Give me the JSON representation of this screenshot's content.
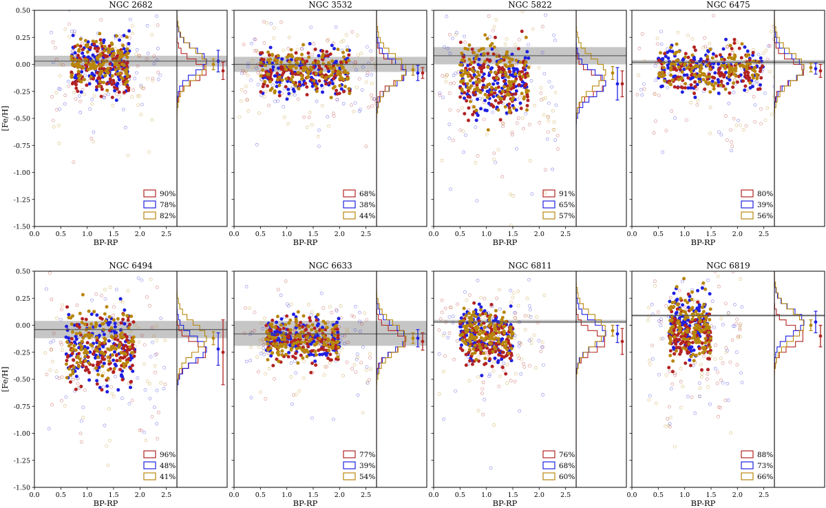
{
  "figure": {
    "ylabel": "[Fe/H]",
    "xlabel": "BP-RP",
    "colors": {
      "red": "#b22222",
      "blue": "#1f1fe0",
      "gold": "#b8860b",
      "band": "#c0c0c0",
      "line": "#555555"
    }
  },
  "chart_data": [
    {
      "type": "scatter",
      "title": "NGC 2682",
      "xlabel": "BP-RP",
      "ylabel": "[Fe/H]",
      "xlim": [
        0.0,
        2.7
      ],
      "ylim": [
        -1.5,
        0.5
      ],
      "xticks": [
        "0.0",
        "0.5",
        "1.0",
        "1.5",
        "2.0",
        "2.5"
      ],
      "yticks": [
        "0.50",
        "0.25",
        "0.00",
        "-0.25",
        "-0.50",
        "-0.75",
        "-1.00",
        "-1.25",
        "-1.50"
      ],
      "reference_feh": 0.03,
      "reference_band": [
        -0.02,
        0.08
      ],
      "cloud": {
        "x_range": [
          0.7,
          1.8
        ],
        "feh_center": -0.02,
        "feh_spread": 0.12
      },
      "series": [
        {
          "name": "red",
          "legend": "90%",
          "median": -0.06,
          "err": 0.08
        },
        {
          "name": "blue",
          "legend": "78%",
          "median": 0.03,
          "err": 0.1
        },
        {
          "name": "gold",
          "legend": "82%",
          "median": 0.0,
          "err": 0.05
        }
      ]
    },
    {
      "type": "scatter",
      "title": "NGC 3532",
      "xlabel": "BP-RP",
      "ylabel": "",
      "xlim": [
        0.0,
        2.7
      ],
      "ylim": [
        -1.5,
        0.5
      ],
      "xticks": [
        "0.0",
        "0.5",
        "1.0",
        "1.5",
        "2.0",
        "2.5"
      ],
      "yticks": [],
      "reference_feh": 0.0,
      "reference_band": [
        -0.07,
        0.07
      ],
      "cloud": {
        "x_range": [
          0.5,
          2.2
        ],
        "feh_center": -0.05,
        "feh_spread": 0.1
      },
      "series": [
        {
          "name": "red",
          "legend": "68%",
          "median": -0.08,
          "err": 0.05
        },
        {
          "name": "blue",
          "legend": "38%",
          "median": -0.08,
          "err": 0.07
        },
        {
          "name": "gold",
          "legend": "44%",
          "median": -0.05,
          "err": 0.05
        }
      ]
    },
    {
      "type": "scatter",
      "title": "NGC 5822",
      "xlabel": "BP-RP",
      "ylabel": "",
      "xlim": [
        0.0,
        2.7
      ],
      "ylim": [
        -1.5,
        0.5
      ],
      "xticks": [
        "0.0",
        "0.5",
        "1.0",
        "1.5",
        "2.0",
        "2.5"
      ],
      "yticks": [],
      "reference_feh": 0.08,
      "reference_band": [
        0.0,
        0.16
      ],
      "cloud": {
        "x_range": [
          0.5,
          1.8
        ],
        "feh_center": -0.15,
        "feh_spread": 0.16
      },
      "series": [
        {
          "name": "red",
          "legend": "91%",
          "median": -0.18,
          "err": 0.12
        },
        {
          "name": "blue",
          "legend": "65%",
          "median": -0.18,
          "err": 0.15
        },
        {
          "name": "gold",
          "legend": "57%",
          "median": -0.08,
          "err": 0.06
        }
      ]
    },
    {
      "type": "scatter",
      "title": "NGC 6475",
      "xlabel": "BP-RP",
      "ylabel": "",
      "xlim": [
        0.0,
        2.7
      ],
      "ylim": [
        -1.5,
        0.5
      ],
      "xticks": [
        "0.0",
        "0.5",
        "1.0",
        "1.5",
        "2.0",
        "2.5"
      ],
      "yticks": [],
      "reference_feh": 0.02,
      "reference_band": [
        0.0,
        0.04
      ],
      "cloud": {
        "x_range": [
          0.5,
          2.5
        ],
        "feh_center": -0.05,
        "feh_spread": 0.1
      },
      "series": [
        {
          "name": "red",
          "legend": "80%",
          "median": -0.06,
          "err": 0.06
        },
        {
          "name": "blue",
          "legend": "39%",
          "median": -0.04,
          "err": 0.05
        },
        {
          "name": "gold",
          "legend": "56%",
          "median": -0.03,
          "err": 0.04
        }
      ]
    },
    {
      "type": "scatter",
      "title": "NGC 6494",
      "xlabel": "BP-RP",
      "ylabel": "[Fe/H]",
      "xlim": [
        0.0,
        2.7
      ],
      "ylim": [
        -1.5,
        0.5
      ],
      "xticks": [
        "0.0",
        "0.5",
        "1.0",
        "1.5",
        "2.0",
        "2.5"
      ],
      "yticks": [
        "0.50",
        "0.25",
        "0.00",
        "-0.25",
        "-0.50",
        "-0.75",
        "-1.00",
        "-1.25",
        "-1.50"
      ],
      "reference_feh": -0.04,
      "reference_band": [
        -0.12,
        0.04
      ],
      "cloud": {
        "x_range": [
          0.6,
          1.9
        ],
        "feh_center": -0.2,
        "feh_spread": 0.16
      },
      "series": [
        {
          "name": "red",
          "legend": "96%",
          "median": -0.25,
          "err": 0.3
        },
        {
          "name": "blue",
          "legend": "48%",
          "median": -0.22,
          "err": 0.15
        },
        {
          "name": "gold",
          "legend": "41%",
          "median": -0.12,
          "err": 0.06
        }
      ]
    },
    {
      "type": "scatter",
      "title": "NGC 6633",
      "xlabel": "BP-RP",
      "ylabel": "",
      "xlim": [
        0.0,
        2.7
      ],
      "ylim": [
        -1.5,
        0.5
      ],
      "xticks": [
        "0.0",
        "0.5",
        "1.0",
        "1.5",
        "2.0",
        "2.5"
      ],
      "yticks": [],
      "reference_feh": -0.08,
      "reference_band": [
        -0.19,
        0.04
      ],
      "cloud": {
        "x_range": [
          0.6,
          2.0
        ],
        "feh_center": -0.1,
        "feh_spread": 0.1
      },
      "series": [
        {
          "name": "red",
          "legend": "77%",
          "median": -0.15,
          "err": 0.08
        },
        {
          "name": "blue",
          "legend": "39%",
          "median": -0.12,
          "err": 0.08
        },
        {
          "name": "gold",
          "legend": "54%",
          "median": -0.12,
          "err": 0.05
        }
      ]
    },
    {
      "type": "scatter",
      "title": "NGC 6811",
      "xlabel": "BP-RP",
      "ylabel": "",
      "xlim": [
        0.0,
        2.7
      ],
      "ylim": [
        -1.5,
        0.5
      ],
      "xticks": [
        "0.0",
        "0.5",
        "1.0",
        "1.5",
        "2.0",
        "2.5"
      ],
      "yticks": [],
      "reference_feh": 0.03,
      "reference_band": [
        0.02,
        0.05
      ],
      "cloud": {
        "x_range": [
          0.5,
          1.5
        ],
        "feh_center": -0.1,
        "feh_spread": 0.12
      },
      "series": [
        {
          "name": "red",
          "legend": "76%",
          "median": -0.15,
          "err": 0.12
        },
        {
          "name": "blue",
          "legend": "68%",
          "median": -0.08,
          "err": 0.08
        },
        {
          "name": "gold",
          "legend": "60%",
          "median": -0.05,
          "err": 0.05
        }
      ]
    },
    {
      "type": "scatter",
      "title": "NGC 6819",
      "xlabel": "BP-RP",
      "ylabel": "",
      "xlim": [
        0.0,
        2.7
      ],
      "ylim": [
        -1.5,
        0.5
      ],
      "xticks": [
        "0.0",
        "0.5",
        "1.0",
        "1.5",
        "2.0",
        "2.5"
      ],
      "yticks": [],
      "reference_feh": 0.09,
      "reference_band": [
        0.08,
        0.1
      ],
      "cloud": {
        "x_range": [
          0.7,
          1.5
        ],
        "feh_center": -0.05,
        "feh_spread": 0.15
      },
      "series": [
        {
          "name": "red",
          "legend": "88%",
          "median": -0.1,
          "err": 0.1
        },
        {
          "name": "blue",
          "legend": "73%",
          "median": 0.03,
          "err": 0.1
        },
        {
          "name": "gold",
          "legend": "66%",
          "median": 0.0,
          "err": 0.05
        }
      ]
    }
  ]
}
